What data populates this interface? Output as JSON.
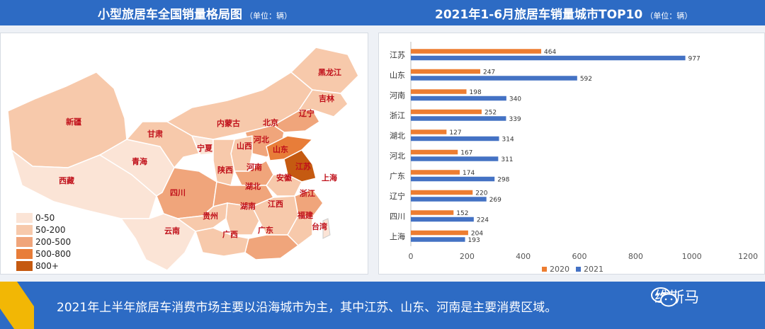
{
  "header": {
    "left_title": "小型旅居车全国销量格局图",
    "left_unit": "（单位：辆）",
    "right_title": "2021年1-6月旅居车销量城市TOP10",
    "right_unit": "（单位：辆）"
  },
  "map": {
    "legend": [
      {
        "label": "0-50",
        "color": "#fbe4d6"
      },
      {
        "label": "50-200",
        "color": "#f7c9ab"
      },
      {
        "label": "200-500",
        "color": "#f0a57b"
      },
      {
        "label": "500-800",
        "color": "#e87d39"
      },
      {
        "label": "800+",
        "color": "#c55a11"
      }
    ],
    "provinces": [
      "黑龙江",
      "吉林",
      "辽宁",
      "新疆",
      "内蒙古",
      "北京",
      "甘肃",
      "河北",
      "宁夏",
      "山西",
      "山东",
      "青海",
      "陕西",
      "河南",
      "江苏",
      "西藏",
      "安徽",
      "上海",
      "四川",
      "湖北",
      "浙江",
      "湖南",
      "江西",
      "贵州",
      "福建",
      "广西",
      "广东",
      "云南",
      "台湾"
    ]
  },
  "chart_data": {
    "type": "bar",
    "orientation": "horizontal",
    "categories": [
      "江苏",
      "山东",
      "河南",
      "浙江",
      "湖北",
      "河北",
      "广东",
      "辽宁",
      "四川",
      "上海"
    ],
    "series": [
      {
        "name": "2020",
        "values": [
          464,
          247,
          198,
          252,
          127,
          167,
          174,
          220,
          152,
          204
        ],
        "color": "#ed7d31"
      },
      {
        "name": "2021",
        "values": [
          977,
          592,
          340,
          339,
          314,
          311,
          298,
          269,
          224,
          193
        ],
        "color": "#4472c4"
      }
    ],
    "xlim": [
      0,
      1200
    ],
    "xticks": [
      "0",
      "200",
      "400",
      "600",
      "800",
      "1000",
      "1200"
    ],
    "legend_position": "bottom",
    "grid": false
  },
  "footer": {
    "text": "2021年上半年旅居车消费市场主要以沿海城市为主，其中江苏、山东、河南是主要消费区域。",
    "brand": "维斯马"
  }
}
